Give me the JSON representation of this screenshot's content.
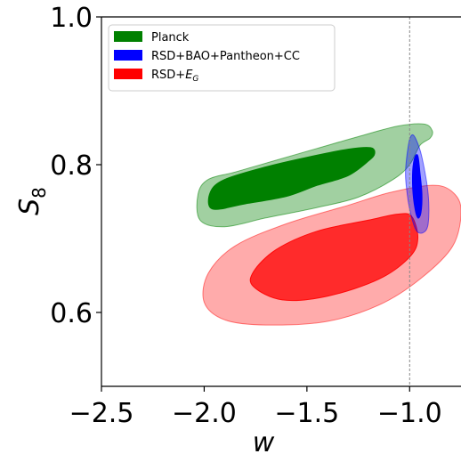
{
  "chart_data": {
    "type": "contour",
    "title": "",
    "xlabel": "w",
    "ylabel_main": "S",
    "ylabel_sub": "8",
    "xlim": [
      -2.5,
      -0.75
    ],
    "ylim": [
      0.5,
      1.0
    ],
    "xticks": [
      -2.5,
      -2.0,
      -1.5,
      -1.0
    ],
    "xtick_labels": [
      "−2.5",
      "−2.0",
      "−1.5",
      "−1.0"
    ],
    "yticks": [
      0.6,
      0.8,
      1.0
    ],
    "ytick_labels": [
      "0.6",
      "0.8",
      "1.0"
    ],
    "reference_line": {
      "x": -1.0,
      "style": "dashed",
      "color": "#888888"
    },
    "legend_position": "top-left",
    "series": [
      {
        "name": "Planck",
        "color": "#008000",
        "contours": [
          {
            "level": "1sigma",
            "opacity": 1.0,
            "points": [
              [
                -1.97,
                0.763
              ],
              [
                -1.96,
                0.74
              ],
              [
                -1.8,
                0.747
              ],
              [
                -1.6,
                0.757
              ],
              [
                -1.45,
                0.772
              ],
              [
                -1.3,
                0.785
              ],
              [
                -1.2,
                0.805
              ],
              [
                -1.17,
                0.815
              ],
              [
                -1.19,
                0.823
              ],
              [
                -1.3,
                0.821
              ],
              [
                -1.5,
                0.81
              ],
              [
                -1.7,
                0.797
              ],
              [
                -1.9,
                0.78
              ]
            ]
          },
          {
            "level": "2sigma",
            "opacity": 0.37,
            "points": [
              [
                -2.03,
                0.76
              ],
              [
                -2.02,
                0.725
              ],
              [
                -1.9,
                0.716
              ],
              [
                -1.7,
                0.728
              ],
              [
                -1.45,
                0.742
              ],
              [
                -1.25,
                0.756
              ],
              [
                -1.08,
                0.78
              ],
              [
                -1.0,
                0.8
              ],
              [
                -0.95,
                0.826
              ],
              [
                -0.9,
                0.836
              ],
              [
                -0.89,
                0.846
              ],
              [
                -0.93,
                0.855
              ],
              [
                -1.06,
                0.852
              ],
              [
                -1.25,
                0.838
              ],
              [
                -1.45,
                0.822
              ],
              [
                -1.65,
                0.806
              ],
              [
                -1.85,
                0.79
              ],
              [
                -1.98,
                0.78
              ]
            ]
          }
        ]
      },
      {
        "name": "RSD+BAO+Pantheon+CC",
        "color": "#0000ff",
        "contours": [
          {
            "level": "1sigma",
            "opacity": 1.0,
            "points": [
              [
                -0.985,
                0.792
              ],
              [
                -0.975,
                0.81
              ],
              [
                -0.96,
                0.812
              ],
              [
                -0.95,
                0.79
              ],
              [
                -0.94,
                0.76
              ],
              [
                -0.945,
                0.735
              ],
              [
                -0.96,
                0.728
              ],
              [
                -0.975,
                0.742
              ],
              [
                -0.985,
                0.768
              ]
            ]
          },
          {
            "level": "2sigma",
            "opacity": 0.37,
            "points": [
              [
                -1.02,
                0.792
              ],
              [
                -1.005,
                0.828
              ],
              [
                -0.99,
                0.84
              ],
              [
                -0.97,
                0.835
              ],
              [
                -0.94,
                0.81
              ],
              [
                -0.91,
                0.76
              ],
              [
                -0.91,
                0.72
              ],
              [
                -0.935,
                0.708
              ],
              [
                -0.97,
                0.712
              ],
              [
                -1.0,
                0.74
              ],
              [
                -1.015,
                0.768
              ]
            ]
          }
        ]
      },
      {
        "name": "RSD+E_G",
        "legend_main": "RSD+",
        "legend_italic": "E",
        "legend_sub": "G",
        "color": "#ff0000",
        "contours": [
          {
            "level": "1sigma",
            "opacity": 0.75,
            "points": [
              [
                -1.76,
                0.635
              ],
              [
                -1.76,
                0.655
              ],
              [
                -1.65,
                0.685
              ],
              [
                -1.45,
                0.71
              ],
              [
                -1.2,
                0.725
              ],
              [
                -1.06,
                0.733
              ],
              [
                -0.99,
                0.73
              ],
              [
                -0.96,
                0.7
              ],
              [
                -1.0,
                0.675
              ],
              [
                -1.15,
                0.645
              ],
              [
                -1.4,
                0.622
              ],
              [
                -1.62,
                0.617
              ]
            ]
          },
          {
            "level": "2sigma",
            "opacity": 0.33,
            "points": [
              [
                -2.0,
                0.614
              ],
              [
                -1.98,
                0.653
              ],
              [
                -1.85,
                0.69
              ],
              [
                -1.6,
                0.72
              ],
              [
                -1.3,
                0.745
              ],
              [
                -1.1,
                0.762
              ],
              [
                -0.9,
                0.772
              ],
              [
                -0.8,
                0.765
              ],
              [
                -0.75,
                0.74
              ],
              [
                -0.79,
                0.69
              ],
              [
                -0.95,
                0.645
              ],
              [
                -1.15,
                0.61
              ],
              [
                -1.4,
                0.588
              ],
              [
                -1.7,
                0.583
              ],
              [
                -1.9,
                0.59
              ]
            ]
          }
        ]
      }
    ]
  }
}
